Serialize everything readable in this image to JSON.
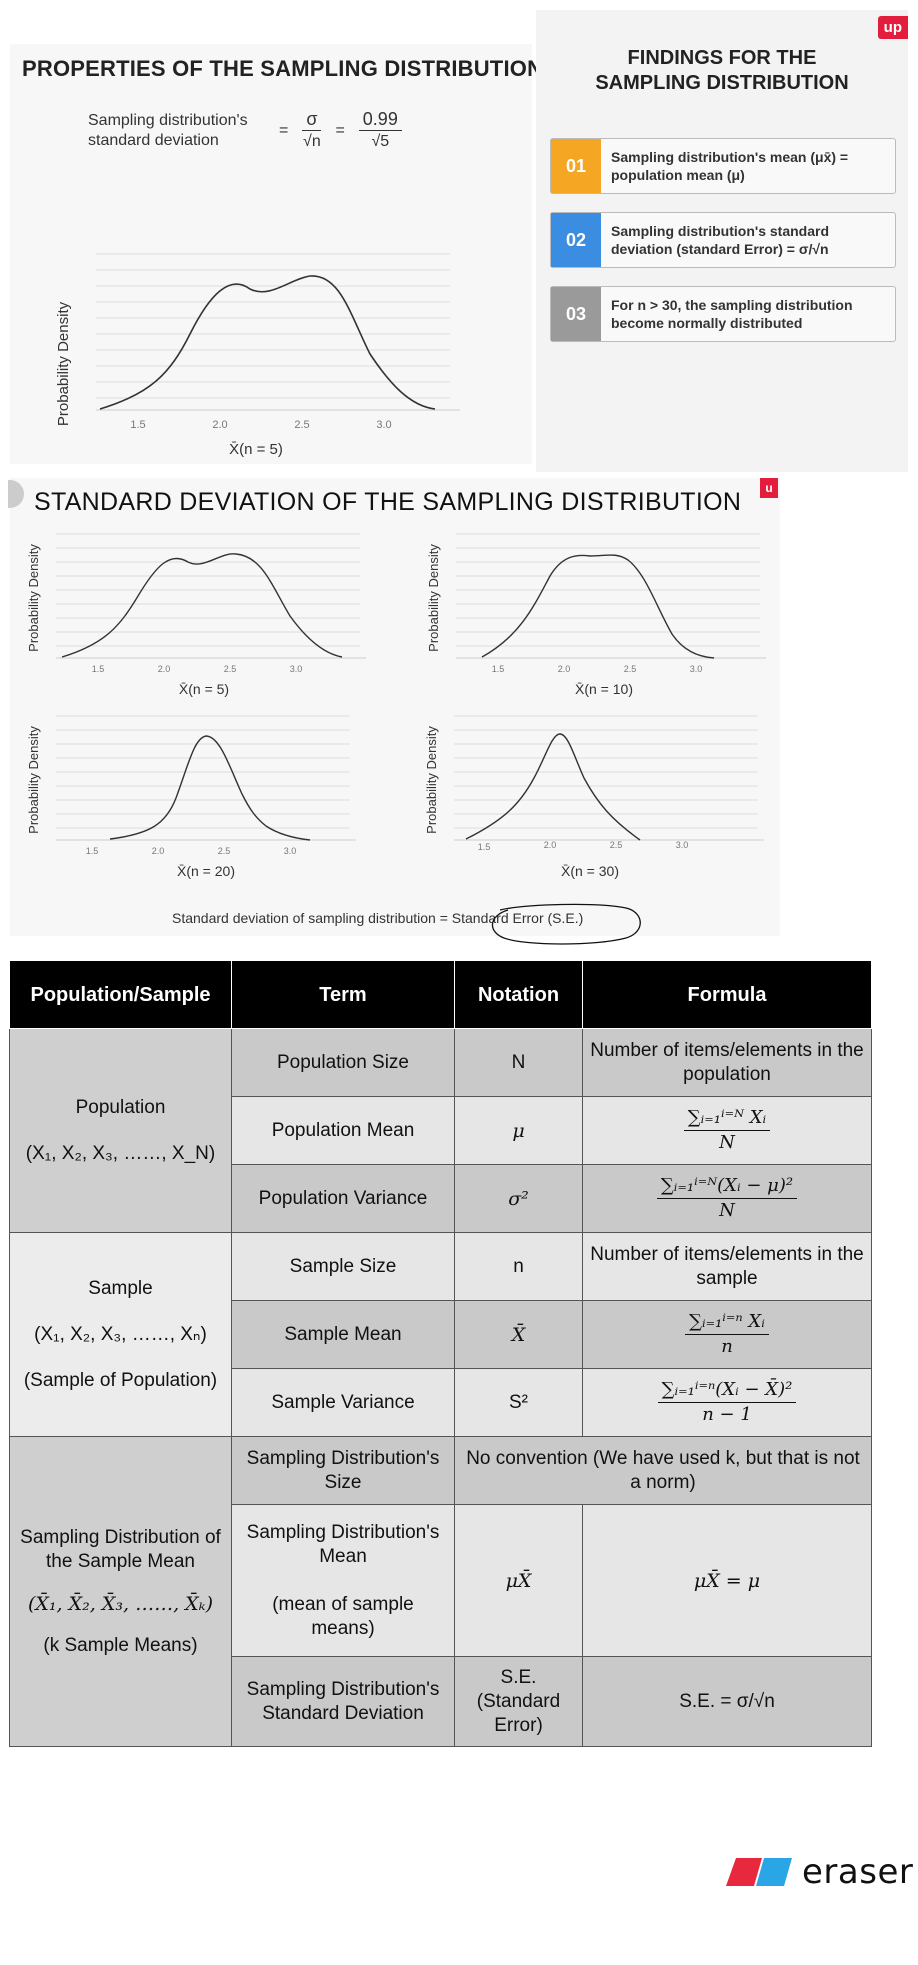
{
  "slide1": {
    "title": "PROPERTIES OF THE SAMPLING DISTRIBUTION",
    "formula_label": "Sampling distribution's standard deviation",
    "formula_num1": "σ",
    "formula_den1": "√n",
    "formula_num2": "0.99",
    "formula_den2": "√5",
    "eq": "=",
    "chart": {
      "ylabel": "Probability Density",
      "xlabel": "X̄(n = 5)",
      "ticks": [
        "1.5",
        "2.0",
        "2.5",
        "3.0"
      ]
    }
  },
  "findings": {
    "title_line1": "FINDINGS FOR THE",
    "title_line2": "SAMPLING DISTRIBUTION",
    "logo": "up",
    "items": [
      {
        "num": "01",
        "text": "Sampling distribution's mean (μx̄) = population mean (μ)",
        "color": "#f5a623"
      },
      {
        "num": "02",
        "text": "Sampling distribution's standard deviation (standard Error) = σ/√n",
        "color": "#3a8de0"
      },
      {
        "num": "03",
        "text": "For n > 30, the sampling distribution become normally distributed",
        "color": "#9a9a9a"
      }
    ]
  },
  "slide2": {
    "title": "STANDARD DEVIATION OF THE SAMPLING DISTRIBUTION",
    "badge": "u",
    "caption": "Standard deviation of sampling distribution = Standard Error (S.E.)",
    "charts": [
      {
        "xlabel": "X̄(n = 5)",
        "ylabel": "Probability Density",
        "ticks": [
          "1.5",
          "2.0",
          "2.5",
          "3.0"
        ]
      },
      {
        "xlabel": "X̄(n = 10)",
        "ylabel": "Probability Density",
        "ticks": [
          "1.5",
          "2.0",
          "2.5",
          "3.0"
        ]
      },
      {
        "xlabel": "X̄(n = 20)",
        "ylabel": "Probability Density",
        "ticks": [
          "1.5",
          "2.0",
          "2.5",
          "3.0"
        ]
      },
      {
        "xlabel": "X̄(n = 30)",
        "ylabel": "Probability Density",
        "ticks": [
          "1.5",
          "2.0",
          "2.5",
          "3.0"
        ]
      }
    ]
  },
  "table": {
    "headers": [
      "Population/Sample",
      "Term",
      "Notation",
      "Formula"
    ],
    "population": {
      "group_line1": "Population",
      "group_line2": "(X₁, X₂, X₃, ……, X_N)",
      "rows": [
        {
          "term": "Population Size",
          "notation": "N",
          "formula": "Number of items/elements in the population"
        },
        {
          "term": "Population Mean",
          "notation": "μ",
          "formula_num": "∑ᵢ₌₁ⁱ⁼ᴺ Xᵢ",
          "formula_den": "N"
        },
        {
          "term": "Population Variance",
          "notation": "σ²",
          "formula_num": "∑ᵢ₌₁ⁱ⁼ᴺ(Xᵢ − μ)²",
          "formula_den": "N"
        }
      ]
    },
    "sample": {
      "group_line1": "Sample",
      "group_line2": "(X₁, X₂, X₃, ……, Xₙ)",
      "group_line3": "(Sample of Population)",
      "rows": [
        {
          "term": "Sample Size",
          "notation": "n",
          "formula": "Number of items/elements in the sample"
        },
        {
          "term": "Sample Mean",
          "notation": "X̄",
          "formula_num": "∑ᵢ₌₁ⁱ⁼ⁿ Xᵢ",
          "formula_den": "n"
        },
        {
          "term": "Sample Variance",
          "notation": "S²",
          "formula_num": "∑ᵢ₌₁ⁱ⁼ⁿ(Xᵢ − X̄)²",
          "formula_den": "n − 1"
        }
      ]
    },
    "sampling": {
      "group_line1": "Sampling Distribution of the Sample Mean",
      "group_line2": "(X̄₁, X̄₂, X̄₃, ……, X̄ₖ)",
      "group_line3": "(k Sample Means)",
      "rows": [
        {
          "term": "Sampling Distribution's Size",
          "formula": "No convention (We have used k, but that is not a norm)"
        },
        {
          "term_line1": "Sampling Distribution's Mean",
          "term_line2": "(mean of sample means)",
          "notation": "μX̄",
          "formula": "μX̄ = μ"
        },
        {
          "term": "Sampling Distribution's Standard Deviation",
          "notation": "S.E. (Standard Error)",
          "formula": "S.E. = σ/√n"
        }
      ]
    }
  },
  "brand": {
    "name": "eraser",
    "colors": [
      "#e8283c",
      "#2aa5e6"
    ]
  }
}
